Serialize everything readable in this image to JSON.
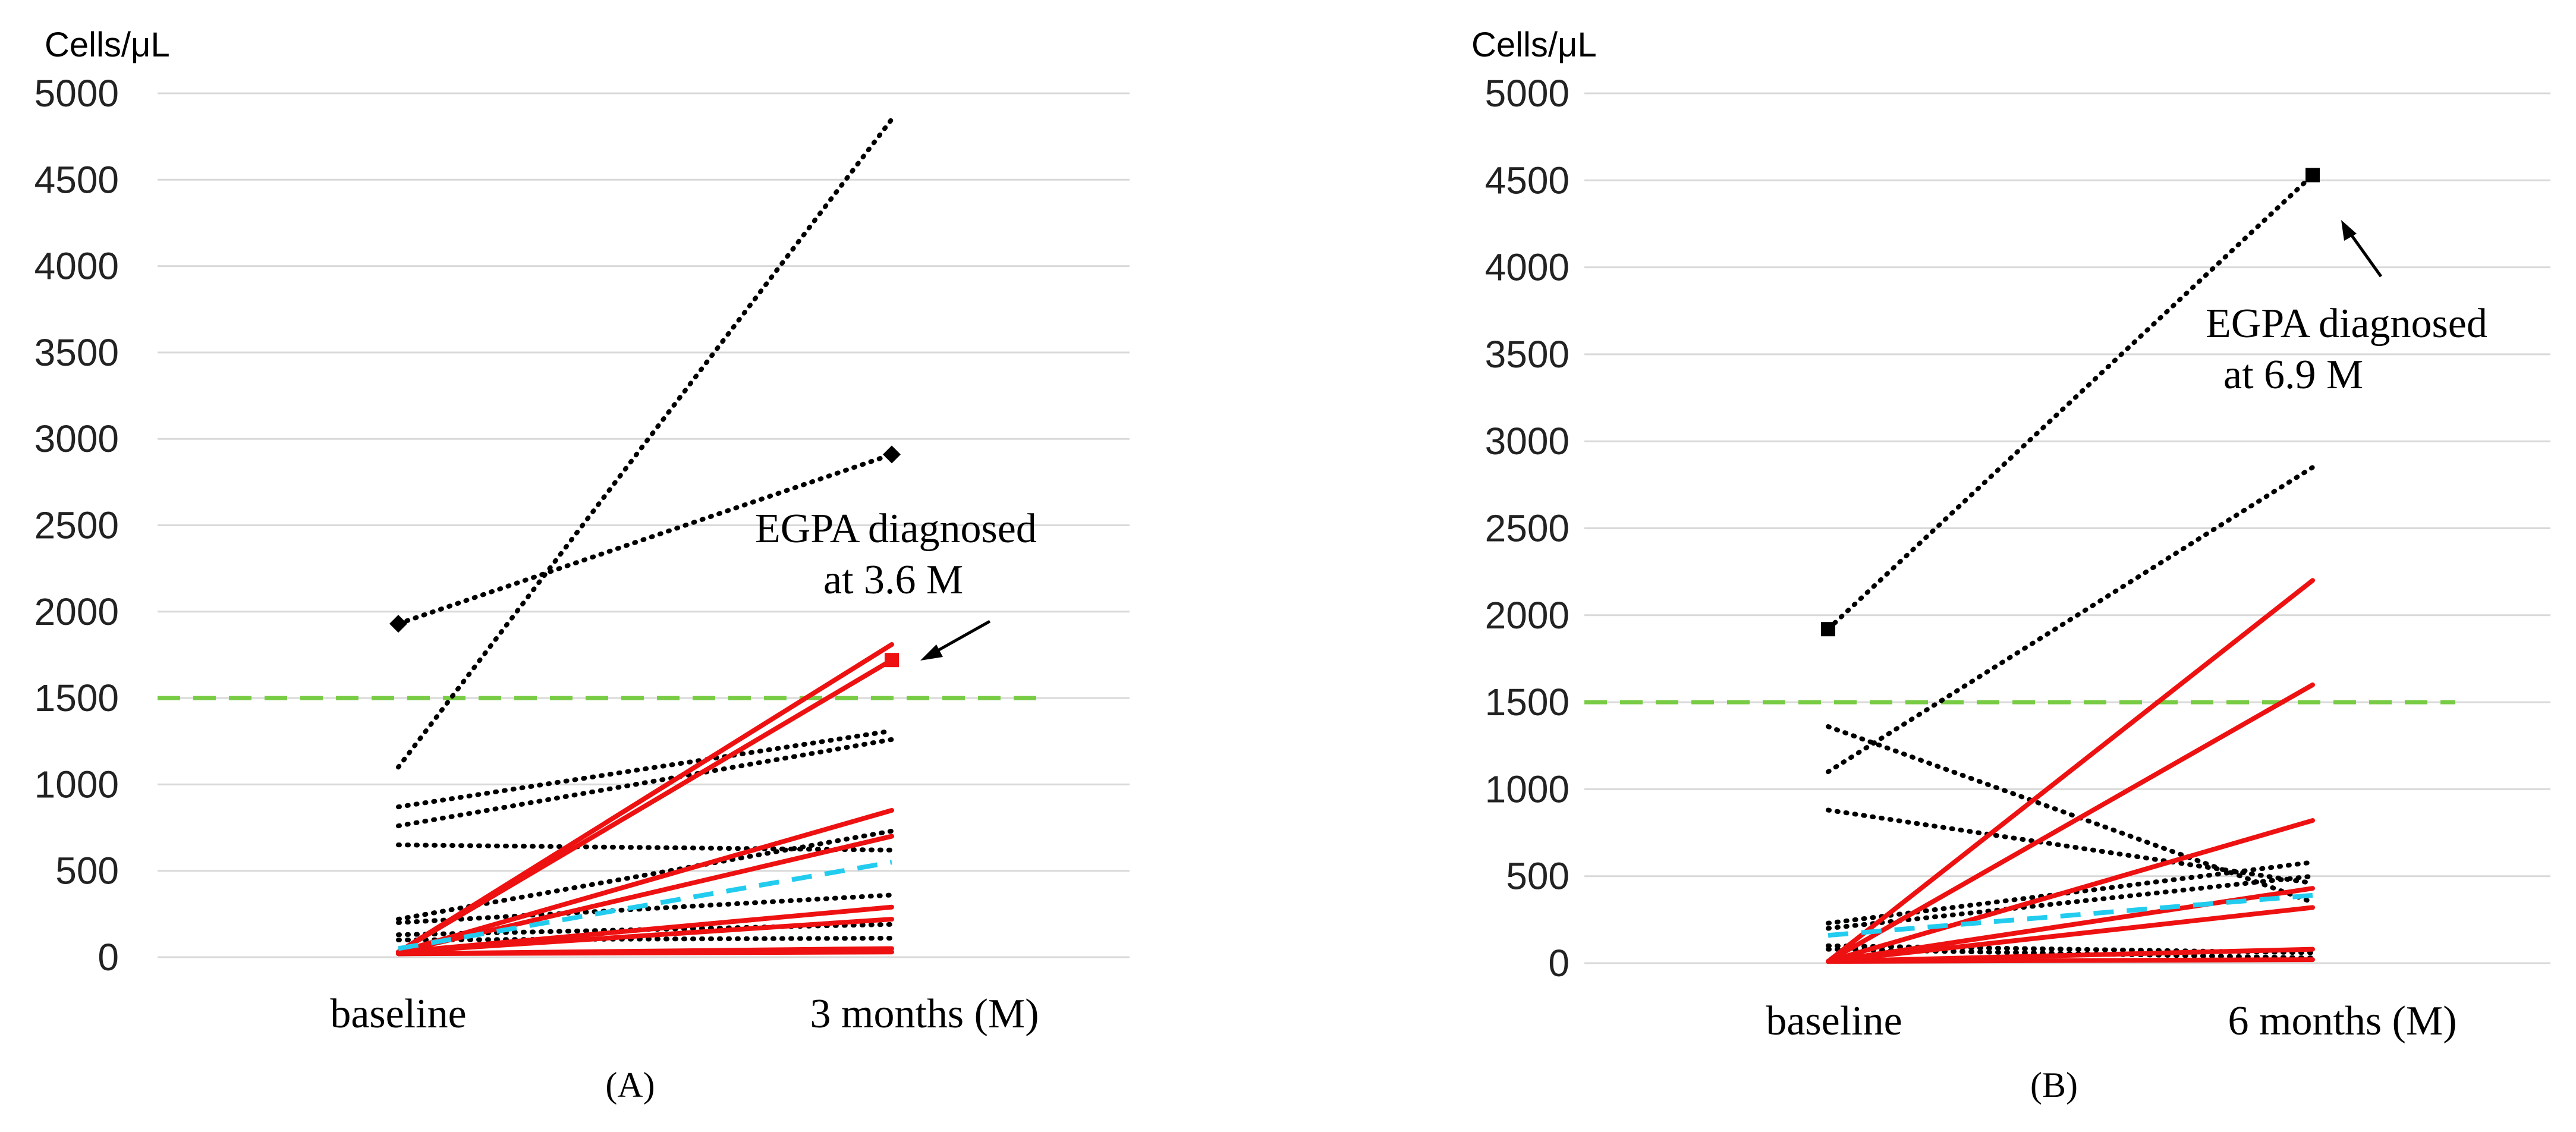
{
  "chart_data": [
    {
      "type": "line",
      "panel_label": "(A)",
      "ylabel": "Cells/μL",
      "categories": [
        "baseline",
        "3 months (M)"
      ],
      "ylim": [
        0,
        5000
      ],
      "yticks": [
        "0",
        "500",
        "1000",
        "1500",
        "2000",
        "2500",
        "3000",
        "3500",
        "4000",
        "4500",
        "5000"
      ],
      "grid": true,
      "threshold": {
        "value": 1500,
        "style": "dashed",
        "color": "#77cc44"
      },
      "annotation": {
        "lines": [
          "EGPA  diagnosed",
          "at 3.6 M"
        ],
        "target": [
          1,
          1720
        ]
      },
      "series": [
        {
          "style": "dotted",
          "color": "#000000",
          "values": [
            1100,
            4850
          ]
        },
        {
          "style": "dotted",
          "color": "#000000",
          "values": [
            1930,
            2910
          ],
          "marker": "diamond"
        },
        {
          "style": "dotted",
          "color": "#000000",
          "values": [
            870,
            1310
          ]
        },
        {
          "style": "dotted",
          "color": "#000000",
          "values": [
            760,
            1260
          ]
        },
        {
          "style": "dotted",
          "color": "#000000",
          "values": [
            650,
            620
          ]
        },
        {
          "style": "dotted",
          "color": "#000000",
          "values": [
            220,
            730
          ]
        },
        {
          "style": "dotted",
          "color": "#000000",
          "values": [
            200,
            360
          ]
        },
        {
          "style": "dotted",
          "color": "#000000",
          "values": [
            130,
            190
          ]
        },
        {
          "style": "dotted",
          "color": "#000000",
          "values": [
            100,
            110
          ]
        },
        {
          "style": "solid",
          "color": "#ee1111",
          "values": [
            30,
            1810
          ]
        },
        {
          "style": "solid",
          "color": "#ee1111",
          "values": [
            30,
            1720
          ],
          "marker": "square"
        },
        {
          "style": "solid",
          "color": "#ee1111",
          "values": [
            30,
            850
          ]
        },
        {
          "style": "solid",
          "color": "#ee1111",
          "values": [
            30,
            700
          ]
        },
        {
          "style": "solid",
          "color": "#ee1111",
          "values": [
            30,
            290
          ]
        },
        {
          "style": "solid",
          "color": "#ee1111",
          "values": [
            30,
            220
          ]
        },
        {
          "style": "solid",
          "color": "#ee1111",
          "values": [
            20,
            50
          ]
        },
        {
          "style": "solid",
          "color": "#ee1111",
          "values": [
            20,
            30
          ]
        },
        {
          "style": "dashed",
          "color": "#22ccee",
          "values": [
            50,
            550
          ]
        }
      ]
    },
    {
      "type": "line",
      "panel_label": "(B)",
      "ylabel": "Cells/μL",
      "categories": [
        "baseline",
        "6 months (M)"
      ],
      "ylim": [
        0,
        5000
      ],
      "yticks": [
        "0",
        "500",
        "1000",
        "1500",
        "2000",
        "2500",
        "3000",
        "3500",
        "4000",
        "4500",
        "5000"
      ],
      "grid": true,
      "threshold": {
        "value": 1500,
        "style": "dashed",
        "color": "#77cc44"
      },
      "annotation": {
        "lines": [
          "EGPA  diagnosed",
          "at 6.9 M"
        ],
        "target": [
          1,
          4530
        ]
      },
      "series": [
        {
          "style": "dotted",
          "color": "#000000",
          "values": [
            1920,
            4530
          ],
          "marker": "square"
        },
        {
          "style": "dotted",
          "color": "#000000",
          "values": [
            1100,
            2850
          ]
        },
        {
          "style": "dotted",
          "color": "#000000",
          "values": [
            1360,
            350
          ]
        },
        {
          "style": "dotted",
          "color": "#000000",
          "values": [
            880,
            460
          ]
        },
        {
          "style": "dotted",
          "color": "#000000",
          "values": [
            230,
            580
          ]
        },
        {
          "style": "dotted",
          "color": "#000000",
          "values": [
            200,
            500
          ]
        },
        {
          "style": "dotted",
          "color": "#000000",
          "values": [
            100,
            60
          ]
        },
        {
          "style": "dotted",
          "color": "#000000",
          "values": [
            80,
            30
          ]
        },
        {
          "style": "solid",
          "color": "#ee1111",
          "values": [
            10,
            2200
          ]
        },
        {
          "style": "solid",
          "color": "#ee1111",
          "values": [
            10,
            1600
          ]
        },
        {
          "style": "solid",
          "color": "#ee1111",
          "values": [
            10,
            820
          ]
        },
        {
          "style": "solid",
          "color": "#ee1111",
          "values": [
            10,
            430
          ]
        },
        {
          "style": "solid",
          "color": "#ee1111",
          "values": [
            10,
            320
          ]
        },
        {
          "style": "solid",
          "color": "#ee1111",
          "values": [
            10,
            80
          ]
        },
        {
          "style": "solid",
          "color": "#ee1111",
          "values": [
            10,
            20
          ]
        },
        {
          "style": "dashed",
          "color": "#22ccee",
          "values": [
            160,
            390
          ]
        }
      ]
    }
  ]
}
